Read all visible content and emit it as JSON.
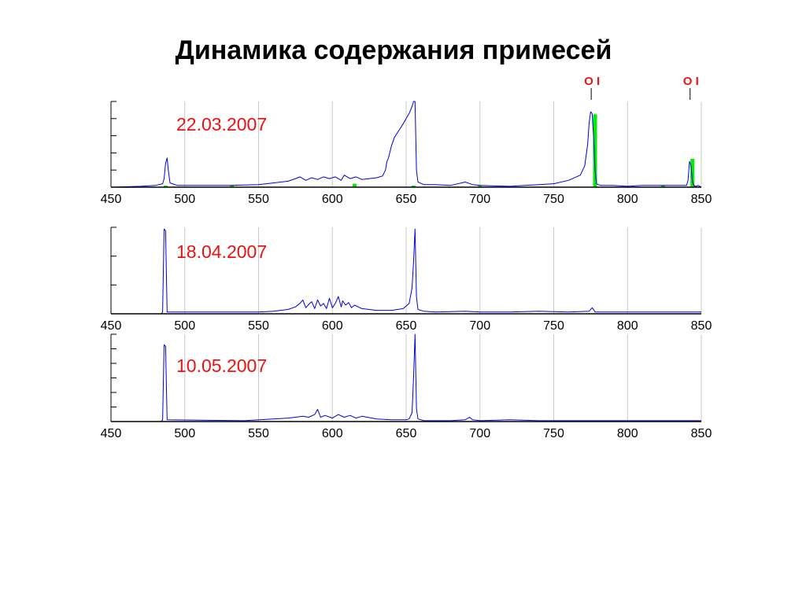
{
  "page": {
    "title": "Динамика содержания примесей"
  },
  "colors": {
    "spectrum": "#0000e0",
    "marker": "#00ee00",
    "date": "#ee1111",
    "line_label": "#ee1111",
    "grid": "#c8c8c8",
    "axis": "#000000"
  },
  "chart_data": [
    {
      "type": "line",
      "annotation": "22.03.2007",
      "xlim": [
        450,
        850
      ],
      "x_ticks": [
        450,
        500,
        550,
        600,
        650,
        700,
        750,
        800,
        850
      ],
      "grid": "vertical",
      "y_tick_count": 5,
      "line_labels": [
        {
          "text": "O I",
          "x": 777
        },
        {
          "text": "O I",
          "x": 844
        }
      ],
      "markers": [
        {
          "x": 487,
          "y": 0.005
        },
        {
          "x": 532,
          "y": 0.01
        },
        {
          "x": 615,
          "y": 0.04
        },
        {
          "x": 655,
          "y": 0.015
        },
        {
          "x": 700,
          "y": 0.01
        },
        {
          "x": 778,
          "y": 0.85
        },
        {
          "x": 824,
          "y": 0.015
        },
        {
          "x": 844,
          "y": 0.33
        }
      ],
      "series": [
        {
          "x": [
            450,
            470,
            480,
            485,
            486,
            487,
            488,
            489,
            490,
            495,
            510,
            530,
            550,
            560,
            570,
            575,
            578,
            582,
            586,
            590,
            594,
            598,
            602,
            606,
            608,
            612,
            616,
            620,
            625,
            630,
            634,
            636,
            637,
            638,
            640,
            642,
            645,
            648,
            650,
            652,
            654,
            655,
            656,
            657,
            658,
            662,
            670,
            680,
            690,
            695,
            700,
            720,
            740,
            750,
            760,
            768,
            771,
            773,
            774,
            775,
            776,
            777,
            778,
            779,
            780,
            782,
            790,
            800,
            810,
            820,
            840,
            841,
            842,
            843,
            844,
            845,
            846,
            848,
            850
          ],
          "y": [
            0.0,
            0.01,
            0.02,
            0.04,
            0.1,
            0.28,
            0.34,
            0.18,
            0.05,
            0.02,
            0.02,
            0.02,
            0.03,
            0.05,
            0.07,
            0.1,
            0.12,
            0.08,
            0.11,
            0.09,
            0.12,
            0.1,
            0.12,
            0.08,
            0.14,
            0.1,
            0.12,
            0.09,
            0.1,
            0.11,
            0.13,
            0.2,
            0.3,
            0.34,
            0.48,
            0.58,
            0.66,
            0.74,
            0.8,
            0.86,
            0.94,
            1.0,
            1.0,
            0.2,
            0.06,
            0.03,
            0.03,
            0.02,
            0.06,
            0.03,
            0.02,
            0.01,
            0.03,
            0.04,
            0.08,
            0.14,
            0.25,
            0.5,
            0.75,
            0.88,
            0.86,
            0.6,
            0.2,
            0.04,
            0.03,
            0.02,
            0.02,
            0.01,
            0.02,
            0.02,
            0.02,
            0.08,
            0.3,
            0.25,
            0.06,
            0.02,
            0.01,
            0.02,
            0.0
          ]
        }
      ]
    },
    {
      "type": "line",
      "annotation": "18.04.2007",
      "xlim": [
        450,
        850
      ],
      "x_ticks": [
        450,
        500,
        550,
        600,
        650,
        700,
        750,
        800,
        850
      ],
      "grid": "vertical",
      "y_tick_count": 3,
      "series": [
        {
          "x": [
            484,
            485,
            486,
            487,
            488,
            550,
            560,
            570,
            575,
            578,
            580,
            582,
            584,
            586,
            588,
            590,
            592,
            594,
            596,
            598,
            600,
            602,
            604,
            606,
            607,
            609,
            611,
            613,
            615,
            620,
            630,
            640,
            648,
            652,
            654,
            655,
            656,
            657,
            658,
            662,
            670,
            690,
            700,
            720,
            740,
            760,
            774,
            776,
            777,
            778,
            790,
            810,
            830,
            850
          ],
          "y": [
            0.0,
            0.02,
            0.98,
            0.96,
            0.02,
            0.02,
            0.03,
            0.05,
            0.08,
            0.12,
            0.16,
            0.07,
            0.11,
            0.14,
            0.06,
            0.16,
            0.09,
            0.12,
            0.06,
            0.18,
            0.07,
            0.12,
            0.2,
            0.08,
            0.15,
            0.1,
            0.13,
            0.07,
            0.1,
            0.06,
            0.04,
            0.04,
            0.06,
            0.12,
            0.3,
            0.6,
            0.98,
            0.2,
            0.05,
            0.03,
            0.02,
            0.03,
            0.02,
            0.02,
            0.03,
            0.02,
            0.03,
            0.07,
            0.05,
            0.02,
            0.02,
            0.02,
            0.02,
            0.02
          ]
        }
      ]
    },
    {
      "type": "line",
      "annotation": "10.05.2007",
      "xlim": [
        450,
        850
      ],
      "x_ticks": [
        450,
        500,
        550,
        600,
        650,
        700,
        750,
        800,
        850
      ],
      "grid": "vertical",
      "y_tick_count": 6,
      "series": [
        {
          "x": [
            476,
            484,
            485,
            486,
            487,
            488,
            540,
            560,
            570,
            575,
            580,
            584,
            588,
            590,
            592,
            595,
            600,
            604,
            608,
            612,
            616,
            620,
            630,
            640,
            650,
            652,
            654,
            655,
            656,
            657,
            658,
            662,
            680,
            690,
            693,
            695,
            700,
            720,
            740,
            760,
            780,
            800,
            820,
            840,
            850
          ],
          "y": [
            0.0,
            0.0,
            0.02,
            0.88,
            0.86,
            0.02,
            0.01,
            0.03,
            0.04,
            0.05,
            0.06,
            0.05,
            0.08,
            0.14,
            0.05,
            0.07,
            0.04,
            0.08,
            0.05,
            0.07,
            0.04,
            0.06,
            0.03,
            0.02,
            0.02,
            0.03,
            0.1,
            0.5,
            1.0,
            0.15,
            0.03,
            0.01,
            0.01,
            0.02,
            0.05,
            0.02,
            0.01,
            0.02,
            0.01,
            0.01,
            0.01,
            0.01,
            0.01,
            0.01,
            0.01
          ]
        }
      ]
    }
  ]
}
